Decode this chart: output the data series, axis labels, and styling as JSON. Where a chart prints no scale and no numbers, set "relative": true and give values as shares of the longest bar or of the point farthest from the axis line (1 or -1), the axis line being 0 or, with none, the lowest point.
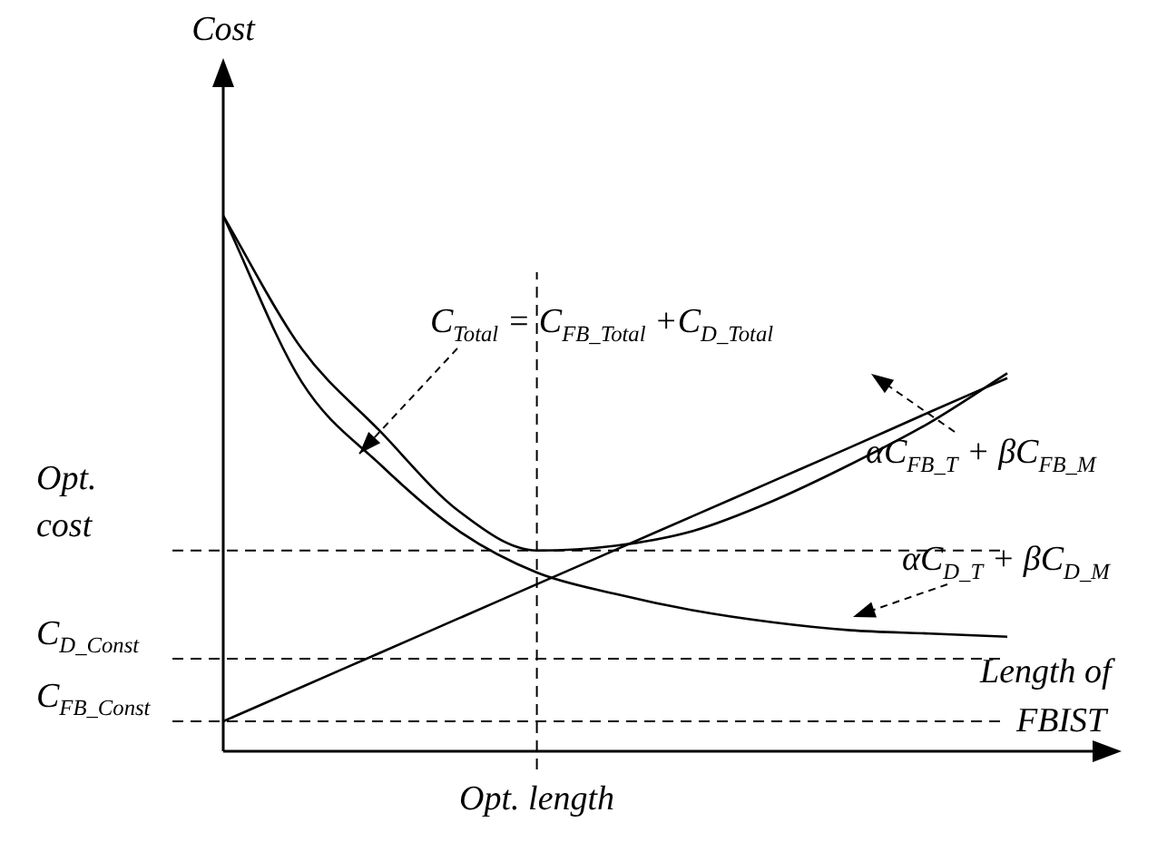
{
  "chart_data": {
    "type": "line",
    "relative": true,
    "xlabel": "Length of FBIST",
    "ylabel": "Cost",
    "legend": false,
    "grid": false,
    "marker": "none",
    "line_style": "solid",
    "categories": [
      null,
      null,
      null,
      null,
      null,
      null,
      null,
      null,
      null,
      null,
      null
    ],
    "series": [
      {
        "color": "#000000",
        "values": [
          1,
          0.752,
          0.598,
          0.449,
          0.375,
          0.384,
          0.412,
          0.467,
          0.536,
          0.613,
          0.706
        ]
      },
      {
        "color": "#000000",
        "values": [
          1,
          0.69,
          0.536,
          0.412,
          0.334,
          0.294,
          0.263,
          0.241,
          0.226,
          0.22,
          0.214
        ]
      },
      {
        "color": "#000000",
        "values": [
          0.056,
          0.12,
          0.184,
          0.248,
          0.312,
          0.376,
          0.44,
          0.504,
          0.568,
          0.633,
          0.697
        ]
      }
    ],
    "ref_lines": [
      {
        "axis": "y",
        "value": 0.375,
        "label": "Opt. cost",
        "color": "#000000",
        "line_style": "dashed"
      },
      {
        "axis": "y",
        "value": 0.173,
        "label": "C$_{D_Const}$",
        "color": "#000000",
        "line_style": "dashed"
      },
      {
        "axis": "y",
        "value": 0.056,
        "label": "C$_{FB_Const}$",
        "color": "#000000",
        "line_style": "dashed"
      }
    ],
    "annotations": [
      "C$_{Total}$ = C$_{FB_Total}$ +C$_{D_Total}$",
      "αC$_{FB_T}$ + βC$_{FB_M}$",
      "αC$_{D_T}$ + βC$_{D_M}$",
      "Opt. length"
    ]
  }
}
